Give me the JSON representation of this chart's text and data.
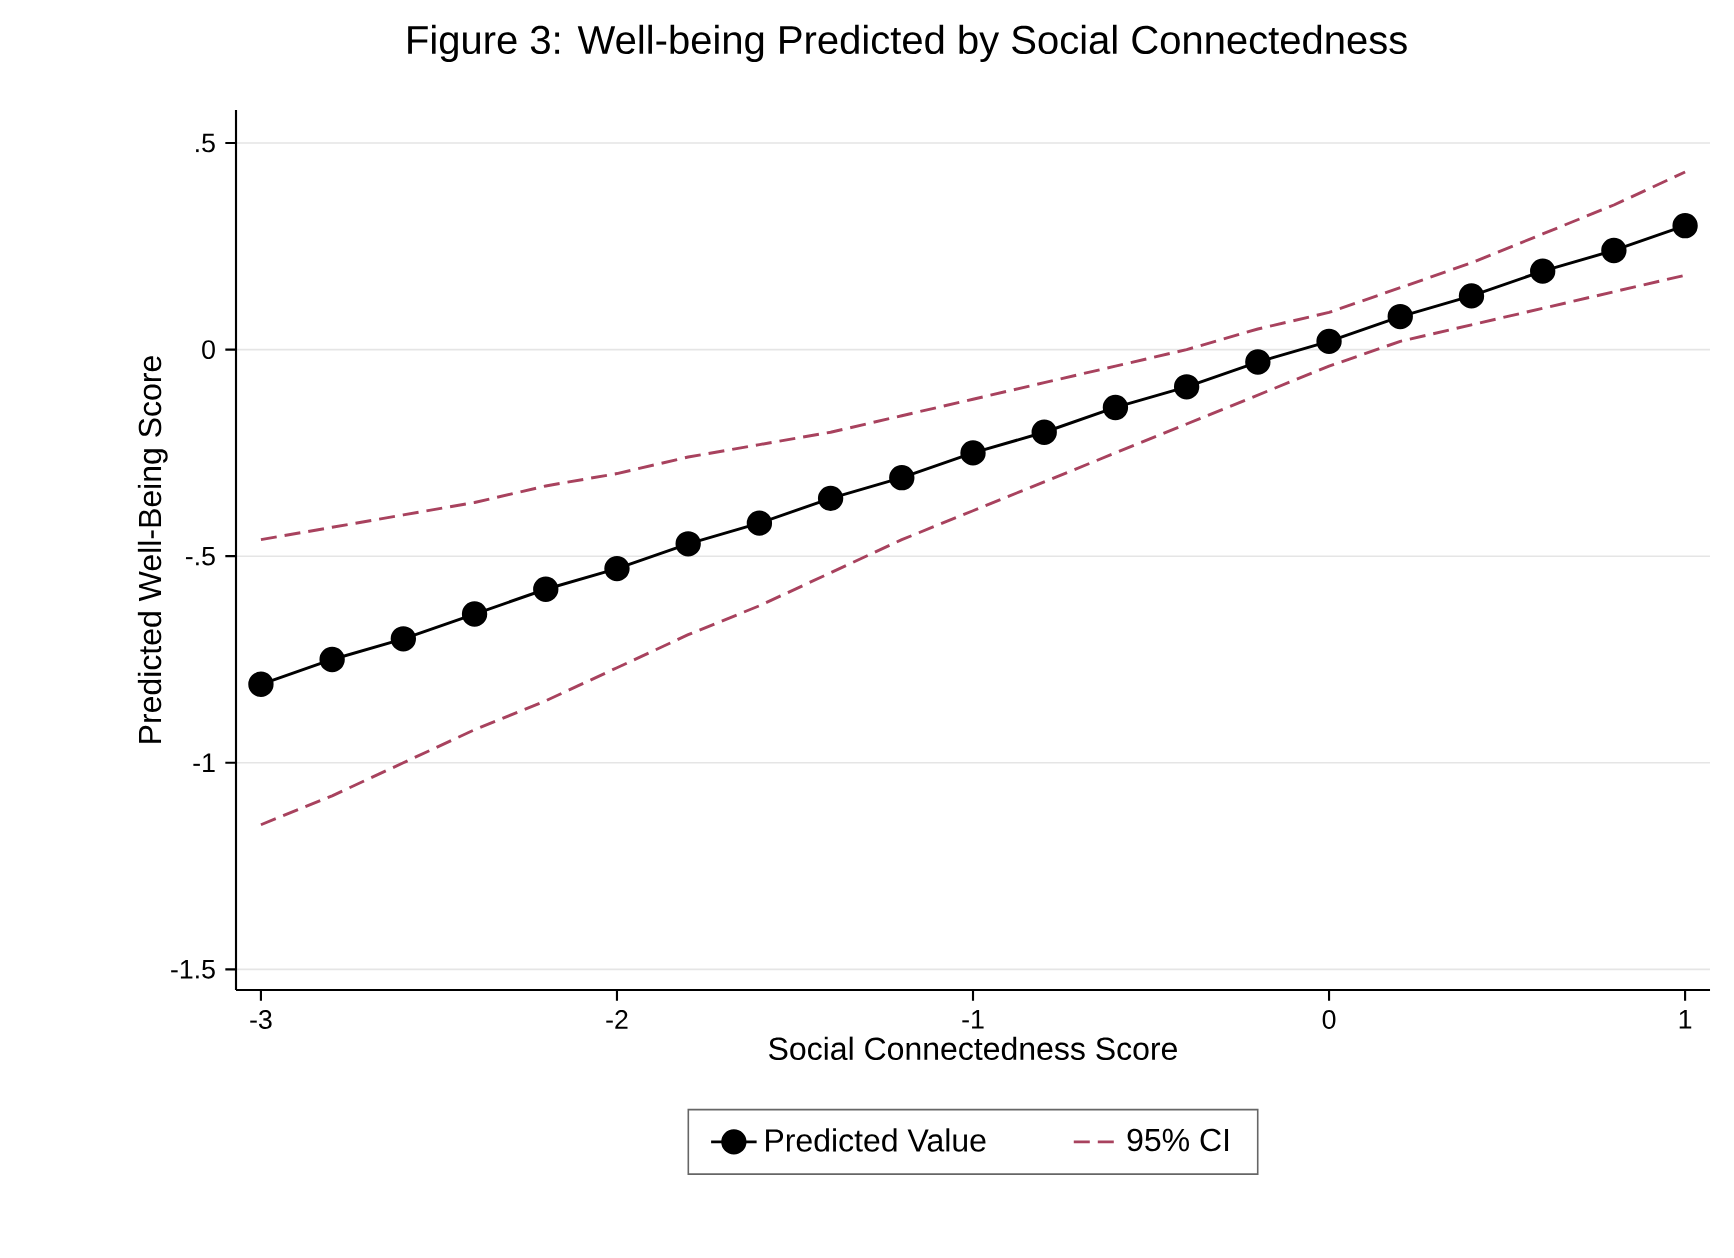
{
  "chart_data": {
    "type": "line",
    "title": "Figure 3: Well-being Predicted by Social Connectedness",
    "xlabel": "Social Connectedness Score",
    "ylabel": "Predicted Well-Being Score",
    "x": [
      -3,
      -2.8,
      -2.6,
      -2.4,
      -2.2,
      -2,
      -1.8,
      -1.6,
      -1.4,
      -1.2,
      -1,
      -0.8,
      -0.6,
      -0.4,
      -0.2,
      0,
      0.2,
      0.4,
      0.6,
      0.8,
      1
    ],
    "series": [
      {
        "name": "Predicted Value",
        "color": "#000000",
        "marker": "circle",
        "line_style": "solid",
        "values": [
          -0.81,
          -0.75,
          -0.7,
          -0.64,
          -0.58,
          -0.53,
          -0.47,
          -0.42,
          -0.36,
          -0.31,
          -0.25,
          -0.2,
          -0.14,
          -0.09,
          -0.03,
          0.02,
          0.08,
          0.13,
          0.19,
          0.24,
          0.3
        ]
      },
      {
        "name": "95% CI",
        "color": "#a8425e",
        "marker": "none",
        "line_style": "dashed",
        "values": [
          -0.46,
          -0.43,
          -0.4,
          -0.37,
          -0.33,
          -0.3,
          -0.26,
          -0.23,
          -0.2,
          -0.16,
          -0.12,
          -0.08,
          -0.04,
          0.0,
          0.05,
          0.09,
          0.15,
          0.21,
          0.28,
          0.35,
          0.43
        ]
      },
      {
        "color": "#a8425e",
        "marker": "none",
        "line_style": "dashed",
        "values": [
          -1.15,
          -1.08,
          -1.0,
          -0.92,
          -0.85,
          -0.77,
          -0.69,
          -0.62,
          -0.54,
          -0.46,
          -0.39,
          -0.32,
          -0.25,
          -0.18,
          -0.11,
          -0.04,
          0.02,
          0.06,
          0.1,
          0.14,
          0.18
        ]
      }
    ],
    "xlim": [
      -3.07,
      1.07
    ],
    "ylim": [
      -1.55,
      0.58
    ],
    "xticks": [
      -3,
      -2,
      -1,
      0,
      1
    ],
    "yticks": [
      {
        "value": 0.5,
        "label": ".5"
      },
      0,
      {
        "value": -0.5,
        "label": "-.5"
      },
      -1,
      -1.5
    ],
    "grid": "y",
    "legend": "bottom"
  }
}
